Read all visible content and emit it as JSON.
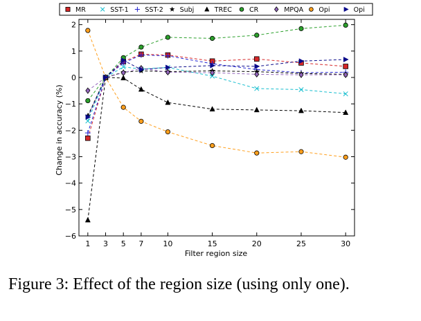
{
  "chart_data": {
    "type": "line",
    "title": "",
    "xlabel": "Filter region size",
    "ylabel": "Change in accuracy (%)",
    "x": [
      1,
      3,
      5,
      7,
      10,
      15,
      20,
      25,
      30
    ],
    "xticks": [
      "1",
      "3",
      "5",
      "7",
      "10",
      "15",
      "20",
      "25",
      "30"
    ],
    "xlim": [
      0,
      31
    ],
    "ylim": [
      -6,
      2.2
    ],
    "yticks": [
      -6,
      -5,
      -4,
      -3,
      -2,
      -1,
      0,
      1,
      2
    ],
    "ytick_labels": [
      "−6",
      "−5",
      "−4",
      "−3",
      "−2",
      "−1",
      "0",
      "1",
      "2"
    ],
    "grid": false,
    "legend_position": "top",
    "series": [
      {
        "name": "MR",
        "color": "#d62728",
        "marker": "square",
        "values": [
          -2.3,
          0,
          0.6,
          0.88,
          0.85,
          0.62,
          0.7,
          0.55,
          0.42
        ]
      },
      {
        "name": "SST-1",
        "color": "#17becf",
        "marker": "x",
        "values": [
          -1.65,
          0,
          0.4,
          0.32,
          0.38,
          0.05,
          -0.42,
          -0.46,
          -0.62
        ]
      },
      {
        "name": "SST-2",
        "color": "#1f1fd0",
        "marker": "plus",
        "values": [
          -2.1,
          0,
          0.55,
          0.85,
          0.82,
          0.52,
          0.3,
          0.18,
          0.2
        ]
      },
      {
        "name": "Subj",
        "color": "#000000",
        "marker": "star",
        "values": [
          -1.45,
          0,
          0.2,
          0.25,
          0.22,
          0.25,
          0.22,
          0.15,
          0.12
        ]
      },
      {
        "name": "TREC",
        "color": "#000000",
        "marker": "triangle",
        "values": [
          -5.4,
          0,
          -0.02,
          -0.45,
          -0.95,
          -1.2,
          -1.23,
          -1.26,
          -1.33
        ]
      },
      {
        "name": "CR",
        "color": "#2ca02c",
        "marker": "circle",
        "values": [
          -0.88,
          0,
          0.75,
          1.15,
          1.52,
          1.48,
          1.6,
          1.85,
          1.98
        ]
      },
      {
        "name": "MPQA",
        "color": "#9467bd",
        "marker": "diamond",
        "values": [
          -0.5,
          0,
          0.18,
          0.35,
          0.2,
          0.18,
          0.12,
          0.1,
          0.1
        ]
      },
      {
        "name": "Opi",
        "color": "#ff9f1c",
        "marker": "circle",
        "values": [
          1.78,
          0,
          -1.13,
          -1.66,
          -2.06,
          -2.58,
          -2.86,
          -2.81,
          -3.02
        ]
      },
      {
        "name": "Opi",
        "color": "#0a0a8a",
        "marker": "triangle-right",
        "values": [
          -1.5,
          0,
          0.65,
          0.3,
          0.38,
          0.45,
          0.42,
          0.62,
          0.68
        ]
      }
    ]
  },
  "caption": {
    "text": "Figure 3:  Effect of the region size (using only one)."
  }
}
